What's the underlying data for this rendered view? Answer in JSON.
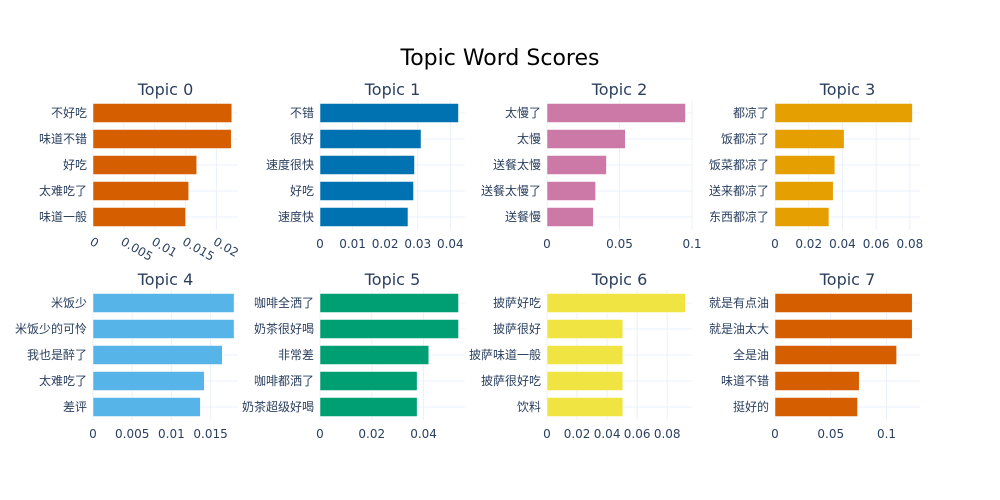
{
  "figure_title": "Topic Word Scores",
  "chart_data": [
    {
      "type": "bar",
      "orientation": "horizontal",
      "title": "Topic 0",
      "color": "#D55E00",
      "categories": [
        "不好吃",
        "味道不错",
        "好吃",
        "太难吃了",
        "味道一般"
      ],
      "values": [
        0.0225,
        0.0224,
        0.0168,
        0.0155,
        0.015
      ],
      "xlim": [
        0,
        0.0235
      ],
      "ticks": [
        0,
        0.005,
        0.01,
        0.015,
        0.02
      ],
      "tick_labels": [
        "0",
        "0.005",
        "0.01",
        "0.015",
        "0.02"
      ],
      "tick_labels_rotated": true,
      "grid": true
    },
    {
      "type": "bar",
      "orientation": "horizontal",
      "title": "Topic 1",
      "color": "#0072B2",
      "categories": [
        "不错",
        "很好",
        "速度很快",
        "好吃",
        "速度快"
      ],
      "values": [
        0.0425,
        0.031,
        0.029,
        0.0287,
        0.027
      ],
      "xlim": [
        0,
        0.0445
      ],
      "ticks": [
        0,
        0.01,
        0.02,
        0.03,
        0.04
      ],
      "tick_labels": [
        "0",
        "0.01",
        "0.02",
        "0.03",
        "0.04"
      ],
      "tick_labels_rotated": false,
      "grid": true
    },
    {
      "type": "bar",
      "orientation": "horizontal",
      "title": "Topic 2",
      "color": "#CC79A7",
      "categories": [
        "太慢了",
        "太慢",
        "送餐太慢",
        "送餐太慢了",
        "送餐慢"
      ],
      "values": [
        0.0955,
        0.054,
        0.041,
        0.0335,
        0.032
      ],
      "xlim": [
        0,
        0.1
      ],
      "ticks": [
        0,
        0.05,
        0.1
      ],
      "tick_labels": [
        "0",
        "0.05",
        "0.1"
      ],
      "tick_labels_rotated": false,
      "grid": true
    },
    {
      "type": "bar",
      "orientation": "horizontal",
      "title": "Topic 3",
      "color": "#E69F00",
      "categories": [
        "都凉了",
        "饭都凉了",
        "饭菜都凉了",
        "送来都凉了",
        "东西都凉了"
      ],
      "values": [
        0.0815,
        0.041,
        0.0355,
        0.0345,
        0.032
      ],
      "xlim": [
        0,
        0.086
      ],
      "ticks": [
        0,
        0.02,
        0.04,
        0.06,
        0.08
      ],
      "tick_labels": [
        "0",
        "0.02",
        "0.04",
        "0.06",
        "0.08"
      ],
      "tick_labels_rotated": false,
      "grid": true
    },
    {
      "type": "bar",
      "orientation": "horizontal",
      "title": "Topic 4",
      "color": "#56B4E9",
      "categories": [
        "米饭少",
        "米饭少的可怜",
        "我也是醉了",
        "太难吃了",
        "差评"
      ],
      "values": [
        0.018,
        0.018,
        0.0165,
        0.0142,
        0.0137
      ],
      "xlim": [
        0,
        0.0185
      ],
      "ticks": [
        0,
        0.005,
        0.01,
        0.015
      ],
      "tick_labels": [
        "0",
        "0.005",
        "0.01",
        "0.015"
      ],
      "tick_labels_rotated": false,
      "grid": true
    },
    {
      "type": "bar",
      "orientation": "horizontal",
      "title": "Topic 5",
      "color": "#009E73",
      "categories": [
        "咖啡全洒了",
        "奶茶很好喝",
        "非常差",
        "咖啡都洒了",
        "奶茶超级好喝"
      ],
      "values": [
        0.0535,
        0.0535,
        0.042,
        0.0375,
        0.0375
      ],
      "xlim": [
        0,
        0.056
      ],
      "ticks": [
        0,
        0.02,
        0.04
      ],
      "tick_labels": [
        "0",
        "0.02",
        "0.04"
      ],
      "tick_labels_rotated": false,
      "grid": true
    },
    {
      "type": "bar",
      "orientation": "horizontal",
      "title": "Topic 6",
      "color": "#F0E442",
      "categories": [
        "披萨好吃",
        "披萨很好",
        "披萨味道一般",
        "披萨很好吃",
        "饮料"
      ],
      "values": [
        0.092,
        0.0505,
        0.0505,
        0.0505,
        0.0505
      ],
      "xlim": [
        0,
        0.0965
      ],
      "ticks": [
        0,
        0.02,
        0.04,
        0.06,
        0.08
      ],
      "tick_labels": [
        "0",
        "0.02",
        "0.04",
        "0.06",
        "0.08"
      ],
      "tick_labels_rotated": false,
      "grid": true
    },
    {
      "type": "bar",
      "orientation": "horizontal",
      "title": "Topic 7",
      "color": "#D55E00",
      "categories": [
        "就是有点油",
        "就是油太大",
        "全是油",
        "味道不错",
        "挺好的"
      ],
      "values": [
        0.123,
        0.123,
        0.109,
        0.0755,
        0.074
      ],
      "xlim": [
        0,
        0.13
      ],
      "ticks": [
        0,
        0.05,
        0.1
      ],
      "tick_labels": [
        "0",
        "0.05",
        "0.1"
      ],
      "tick_labels_rotated": false,
      "grid": true
    }
  ]
}
